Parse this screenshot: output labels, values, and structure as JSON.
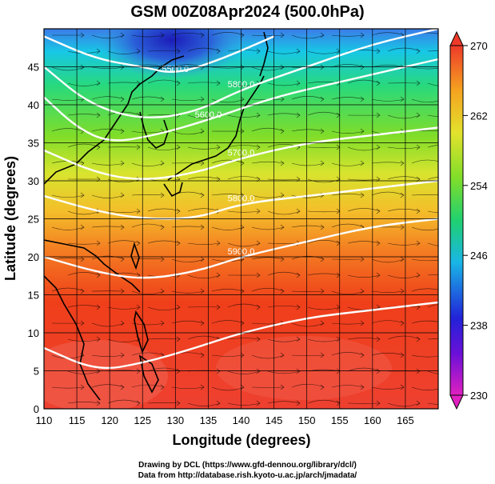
{
  "title": "GSM 00Z08Apr2024 (500.0hPa)",
  "xlabel": "Longitude (degrees)",
  "ylabel": "Latitude  (degrees)",
  "credit_line1": "Drawing by DCL (https://www.gfd-dennou.org/library/dcl/)",
  "credit_line2": "Data from http://database.rish.kyoto-u.ac.jp/arch/jmadata/",
  "x_ticks": [
    "110",
    "115",
    "120",
    "125",
    "130",
    "135",
    "140",
    "145",
    "150",
    "155",
    "160",
    "165"
  ],
  "y_ticks": [
    "0",
    "5",
    "10",
    "15",
    "20",
    "25",
    "30",
    "35",
    "40",
    "45"
  ],
  "colorbar_ticks": [
    "230",
    "238",
    "246",
    "254",
    "262",
    "270"
  ],
  "contour_labels": [
    "5500.0",
    "5800.0",
    "5600.0",
    "5700.0",
    "5800.0",
    "5900.0"
  ],
  "chart_data": {
    "type": "heatmap",
    "title": "GSM 00Z08Apr2024 (500.0hPa)",
    "xlabel": "Longitude (degrees)",
    "ylabel": "Latitude  (degrees)",
    "xlim": [
      110,
      170
    ],
    "ylim": [
      0,
      50
    ],
    "colorbar": {
      "range": [
        230,
        270
      ],
      "ticks": [
        230,
        238,
        246,
        254,
        262,
        270
      ]
    },
    "grid": true,
    "fill_zones": [
      {
        "lat": 49,
        "value": 238
      },
      {
        "lat": 45,
        "value": 248
      },
      {
        "lat": 40,
        "value": 254
      },
      {
        "lat": 35,
        "value": 257
      },
      {
        "lat": 30,
        "value": 261
      },
      {
        "lat": 25,
        "value": 264
      },
      {
        "lat": 20,
        "value": 266
      },
      {
        "lat": 10,
        "value": 268
      },
      {
        "lat": 0,
        "value": 269
      }
    ],
    "contours": [
      {
        "label": "5500.0",
        "points": [
          [
            110,
            49
          ],
          [
            118,
            46
          ],
          [
            125,
            45
          ],
          [
            130,
            44
          ],
          [
            137,
            46
          ],
          [
            145,
            49
          ]
        ]
      },
      {
        "label": "5800.0",
        "points": [
          [
            110,
            45
          ],
          [
            117,
            40
          ],
          [
            125,
            38
          ],
          [
            133,
            39
          ],
          [
            140,
            42
          ],
          [
            150,
            45
          ],
          [
            160,
            48
          ],
          [
            170,
            50
          ]
        ]
      },
      {
        "label": "5600.0",
        "points": [
          [
            110,
            41
          ],
          [
            115,
            37
          ],
          [
            120,
            35
          ],
          [
            127,
            36
          ],
          [
            135,
            38
          ],
          [
            145,
            41
          ],
          [
            155,
            43
          ],
          [
            165,
            45
          ],
          [
            170,
            46
          ]
        ]
      },
      {
        "label": "5700.0",
        "points": [
          [
            110,
            34
          ],
          [
            118,
            31
          ],
          [
            125,
            30
          ],
          [
            133,
            31
          ],
          [
            140,
            33
          ],
          [
            150,
            35
          ],
          [
            160,
            36
          ],
          [
            170,
            37
          ]
        ]
      },
      {
        "label": "5800.0",
        "points": [
          [
            110,
            28
          ],
          [
            118,
            26
          ],
          [
            125,
            25
          ],
          [
            133,
            25
          ],
          [
            140,
            27
          ],
          [
            150,
            28
          ],
          [
            160,
            29
          ],
          [
            170,
            30
          ]
        ]
      },
      {
        "label": "5900.0",
        "points": [
          [
            110,
            20
          ],
          [
            118,
            18
          ],
          [
            125,
            17
          ],
          [
            133,
            18
          ],
          [
            140,
            20
          ],
          [
            150,
            22
          ],
          [
            160,
            24
          ],
          [
            170,
            25
          ]
        ]
      },
      {
        "label": "",
        "points": [
          [
            110,
            8
          ],
          [
            118,
            5
          ],
          [
            125,
            6
          ],
          [
            133,
            8
          ],
          [
            140,
            10
          ],
          [
            150,
            12
          ],
          [
            160,
            13
          ],
          [
            170,
            14
          ]
        ]
      }
    ]
  }
}
